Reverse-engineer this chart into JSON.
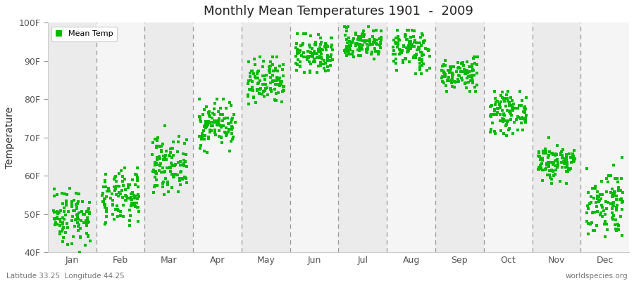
{
  "title": "Monthly Mean Temperatures 1901  -  2009",
  "ylabel": "Temperature",
  "xlabel_months": [
    "Jan",
    "Feb",
    "Mar",
    "Apr",
    "May",
    "Jun",
    "Jul",
    "Aug",
    "Sep",
    "Oct",
    "Nov",
    "Dec"
  ],
  "yticks": [
    40,
    50,
    60,
    70,
    80,
    90,
    100
  ],
  "ytick_labels": [
    "40F",
    "50F",
    "60F",
    "70F",
    "80F",
    "90F",
    "100F"
  ],
  "ylim": [
    40,
    100
  ],
  "dot_color": "#00BB00",
  "bg_color": "#f0f0f0",
  "band_color_odd": "#ebebeb",
  "band_color_even": "#f5f5f5",
  "footer_left": "Latitude 33.25  Longitude 44.25",
  "footer_right": "worldspecies.org",
  "month_data": {
    "Jan": {
      "mean": 49.5,
      "std": 3.8,
      "min": 40,
      "max": 57
    },
    "Feb": {
      "mean": 54.0,
      "std": 3.5,
      "min": 46,
      "max": 62
    },
    "Mar": {
      "mean": 63.0,
      "std": 3.5,
      "min": 55,
      "max": 73
    },
    "Apr": {
      "mean": 73.5,
      "std": 3.0,
      "min": 66,
      "max": 80
    },
    "May": {
      "mean": 84.0,
      "std": 3.2,
      "min": 77,
      "max": 91
    },
    "Jun": {
      "mean": 91.5,
      "std": 2.5,
      "min": 87,
      "max": 97
    },
    "Jul": {
      "mean": 94.5,
      "std": 2.0,
      "min": 90,
      "max": 99
    },
    "Aug": {
      "mean": 93.0,
      "std": 2.8,
      "min": 84,
      "max": 98
    },
    "Sep": {
      "mean": 86.5,
      "std": 2.2,
      "min": 82,
      "max": 91
    },
    "Oct": {
      "mean": 76.5,
      "std": 2.5,
      "min": 70,
      "max": 82
    },
    "Nov": {
      "mean": 63.5,
      "std": 2.5,
      "min": 58,
      "max": 70
    },
    "Dec": {
      "mean": 53.0,
      "std": 4.5,
      "min": 44,
      "max": 65
    }
  },
  "n_years": 109
}
